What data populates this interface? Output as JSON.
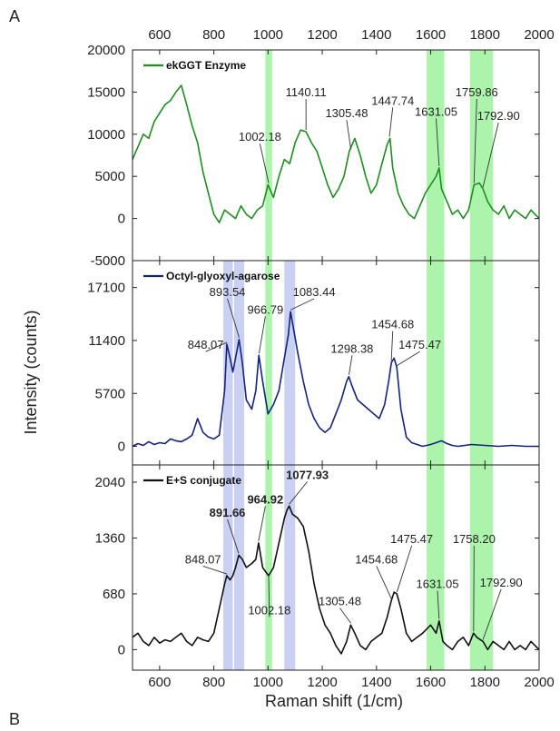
{
  "figure": {
    "letter_top": "A",
    "letter_bottom": "B"
  },
  "chart_data": {
    "type": "line",
    "xlabel": "Raman shift (1/cm)",
    "ylabel": "Intensity (counts)",
    "xlim": [
      500,
      2000
    ],
    "xticks": [
      600,
      800,
      1000,
      1200,
      1400,
      1600,
      1800,
      2000
    ],
    "panels": [
      {
        "name": "ekGGT Enzyme",
        "color": "#1e8c1e",
        "ylim": [
          -5000,
          20000
        ],
        "yticks": [
          -5000,
          0,
          5000,
          10000,
          15000,
          20000
        ],
        "x": [
          500,
          520,
          540,
          560,
          580,
          600,
          620,
          640,
          660,
          680,
          700,
          720,
          740,
          760,
          780,
          800,
          820,
          840,
          860,
          880,
          900,
          920,
          940,
          960,
          980,
          1000,
          1020,
          1040,
          1060,
          1080,
          1100,
          1120,
          1140,
          1160,
          1180,
          1200,
          1220,
          1240,
          1260,
          1280,
          1300,
          1320,
          1340,
          1360,
          1380,
          1400,
          1420,
          1440,
          1450,
          1460,
          1480,
          1500,
          1520,
          1540,
          1560,
          1580,
          1600,
          1620,
          1631,
          1640,
          1660,
          1680,
          1700,
          1720,
          1740,
          1760,
          1780,
          1793,
          1810,
          1830,
          1850,
          1870,
          1890,
          1910,
          1930,
          1950,
          1970,
          2000
        ],
        "y": [
          7000,
          8500,
          10000,
          9500,
          11500,
          12500,
          13500,
          14000,
          15000,
          15800,
          13500,
          11000,
          9000,
          5500,
          3000,
          500,
          -500,
          1000,
          500,
          0,
          1500,
          500,
          0,
          1000,
          1500,
          4000,
          2500,
          5000,
          7000,
          6500,
          9000,
          10500,
          10300,
          9000,
          8000,
          6000,
          4000,
          2500,
          3500,
          5000,
          8000,
          9500,
          7500,
          5000,
          3000,
          4000,
          6500,
          8800,
          9500,
          6000,
          3000,
          1500,
          500,
          0,
          1500,
          3000,
          4000,
          5000,
          6000,
          3500,
          2000,
          500,
          1000,
          0,
          1000,
          4000,
          4200,
          3500,
          2000,
          1000,
          500,
          1500,
          0,
          1000,
          500,
          0,
          1000,
          0
        ],
        "bands": [
          [
            990,
            1015
          ],
          [
            1585,
            1650
          ],
          [
            1745,
            1830
          ]
        ],
        "annotations": [
          {
            "x": 1002.18,
            "label": "1002.18",
            "lx": 970,
            "ly": 9200
          },
          {
            "x": 1140.11,
            "label": "1140.11",
            "lx": 1140,
            "ly": 14500
          },
          {
            "x": 1305.48,
            "label": "1305.48",
            "lx": 1290,
            "ly": 12000
          },
          {
            "x": 1447.74,
            "label": "1447.74",
            "lx": 1460,
            "ly": 13500
          },
          {
            "x": 1631.05,
            "label": "1631.05",
            "lx": 1620,
            "ly": 12200
          },
          {
            "x": 1759.86,
            "label": "1759.86",
            "lx": 1770,
            "ly": 14500
          },
          {
            "x": 1792.9,
            "label": "1792.90",
            "lx": 1850,
            "ly": 11700
          }
        ]
      },
      {
        "name": "Octyl-glyoxyl-agarose",
        "color": "#14237d",
        "ylim": [
          -2000,
          20000
        ],
        "yticks": [
          0,
          5700,
          11400,
          17100
        ],
        "x": [
          500,
          520,
          540,
          560,
          580,
          600,
          620,
          640,
          660,
          680,
          700,
          720,
          740,
          760,
          780,
          800,
          820,
          840,
          848,
          860,
          870,
          880,
          893,
          905,
          920,
          940,
          955,
          966,
          980,
          1000,
          1020,
          1040,
          1060,
          1075,
          1083,
          1095,
          1110,
          1130,
          1150,
          1170,
          1190,
          1210,
          1230,
          1250,
          1270,
          1290,
          1298,
          1310,
          1330,
          1350,
          1370,
          1390,
          1410,
          1430,
          1445,
          1455,
          1465,
          1475,
          1490,
          1510,
          1530,
          1550,
          1570,
          1600,
          1620,
          1640,
          1660,
          1680,
          1700,
          1750,
          1800,
          1850,
          1900,
          1950,
          2000
        ],
        "y": [
          0,
          300,
          100,
          500,
          200,
          400,
          300,
          800,
          600,
          500,
          800,
          1200,
          3000,
          1500,
          1000,
          800,
          1200,
          6000,
          11000,
          9500,
          8000,
          9500,
          11500,
          9000,
          5000,
          4000,
          6000,
          9800,
          7000,
          3500,
          4500,
          6000,
          9500,
          12000,
          14500,
          12500,
          10000,
          7000,
          4500,
          3000,
          2000,
          1500,
          2000,
          3500,
          5000,
          7000,
          7500,
          6500,
          5000,
          4500,
          4000,
          3500,
          3000,
          4500,
          7000,
          9000,
          9500,
          8500,
          4000,
          1000,
          400,
          200,
          0,
          200,
          400,
          600,
          300,
          100,
          0,
          200,
          100,
          0,
          100,
          0,
          0
        ],
        "bands": [
          [
            835,
            870
          ],
          [
            875,
            912
          ],
          [
            990,
            1015
          ],
          [
            1060,
            1100
          ],
          [
            1585,
            1650
          ],
          [
            1745,
            1830
          ]
        ],
        "annotations": [
          {
            "x": 848.07,
            "label": "848.07",
            "lx": 770,
            "ly": 10500
          },
          {
            "x": 893.54,
            "label": "893.54",
            "lx": 850,
            "ly": 16200
          },
          {
            "x": 966.79,
            "label": "966.79",
            "lx": 990,
            "ly": 14300
          },
          {
            "x": 1083.44,
            "label": "1083.44",
            "lx": 1170,
            "ly": 16200
          },
          {
            "x": 1298.38,
            "label": "1298.38",
            "lx": 1310,
            "ly": 10100
          },
          {
            "x": 1454.68,
            "label": "1454.68",
            "lx": 1460,
            "ly": 12700
          },
          {
            "x": 1475.47,
            "label": "1475.47",
            "lx": 1560,
            "ly": 10500
          }
        ]
      },
      {
        "name": "E+S conjugate",
        "color": "#111111",
        "ylim": [
          -250,
          2250
        ],
        "yticks": [
          0,
          680,
          1360,
          2040
        ],
        "x": [
          500,
          520,
          540,
          560,
          580,
          600,
          620,
          640,
          660,
          680,
          700,
          720,
          740,
          760,
          780,
          800,
          820,
          840,
          848,
          860,
          870,
          880,
          892,
          905,
          920,
          940,
          955,
          965,
          980,
          1002,
          1020,
          1040,
          1060,
          1070,
          1078,
          1090,
          1110,
          1130,
          1150,
          1170,
          1190,
          1210,
          1230,
          1250,
          1270,
          1290,
          1305,
          1320,
          1340,
          1360,
          1380,
          1400,
          1420,
          1440,
          1455,
          1465,
          1475,
          1490,
          1510,
          1530,
          1550,
          1570,
          1600,
          1620,
          1631,
          1645,
          1660,
          1680,
          1700,
          1720,
          1740,
          1758,
          1770,
          1793,
          1810,
          1830,
          1850,
          1870,
          1890,
          1910,
          1930,
          1950,
          1970,
          2000
        ],
        "y": [
          150,
          200,
          100,
          50,
          150,
          80,
          120,
          100,
          150,
          200,
          100,
          50,
          150,
          120,
          100,
          200,
          500,
          800,
          900,
          850,
          900,
          1000,
          1150,
          1100,
          1000,
          1050,
          1100,
          1300,
          1000,
          900,
          1000,
          1300,
          1600,
          1700,
          1750,
          1650,
          1600,
          1500,
          1200,
          800,
          500,
          300,
          200,
          50,
          -50,
          100,
          300,
          200,
          50,
          0,
          100,
          150,
          200,
          400,
          600,
          700,
          680,
          500,
          200,
          100,
          150,
          200,
          300,
          200,
          350,
          100,
          50,
          0,
          100,
          150,
          50,
          200,
          150,
          100,
          0,
          100,
          50,
          0,
          100,
          0,
          50,
          0,
          100,
          0
        ],
        "bands": [
          [
            835,
            870
          ],
          [
            875,
            912
          ],
          [
            990,
            1015
          ],
          [
            1060,
            1100
          ],
          [
            1585,
            1650
          ],
          [
            1745,
            1830
          ]
        ],
        "annotations": [
          {
            "x": 848.07,
            "label": "848.07",
            "lx": 760,
            "ly": 1050,
            "color": "#3c5ad6",
            "bold": false
          },
          {
            "x": 891.66,
            "label": "891.66",
            "lx": 850,
            "ly": 1620,
            "color": "#3c5ad6",
            "bold": true
          },
          {
            "x": 964.92,
            "label": "964.92",
            "lx": 990,
            "ly": 1780,
            "color": "#3c5ad6",
            "bold": true
          },
          {
            "x": 1077.93,
            "label": "1077.93",
            "lx": 1145,
            "ly": 2080,
            "color": "#3c5ad6",
            "bold": true
          },
          {
            "x": 1002.18,
            "label": "1002.18",
            "lx": 1005,
            "ly": 430,
            "color": "#2a9a2a",
            "bold": false
          },
          {
            "x": 1305.48,
            "label": "1305.48",
            "lx": 1265,
            "ly": 540,
            "color": "#2a9a2a",
            "bold": false
          },
          {
            "x": 1454.68,
            "label": "1454.68",
            "lx": 1400,
            "ly": 1050,
            "color": "#3c5ad6",
            "bold": false
          },
          {
            "x": 1475.47,
            "label": "1475.47",
            "lx": 1530,
            "ly": 1300,
            "color": "#3c5ad6",
            "bold": false
          },
          {
            "x": 1631.05,
            "label": "1631.05",
            "lx": 1625,
            "ly": 750,
            "color": "#2a9a2a",
            "bold": false
          },
          {
            "x": 1758.2,
            "label": "1758.20",
            "lx": 1760,
            "ly": 1300,
            "color": "#2a9a2a",
            "bold": false
          },
          {
            "x": 1792.9,
            "label": "1792.90",
            "lx": 1860,
            "ly": 770,
            "color": "#2a9a2a",
            "bold": false
          }
        ]
      }
    ]
  }
}
